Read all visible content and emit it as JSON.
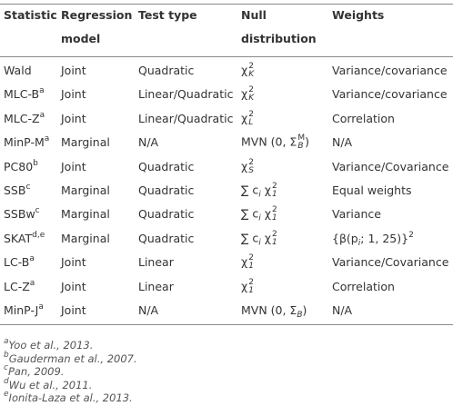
{
  "table": {
    "header": [
      "Statistic",
      "Regression model",
      "Test type",
      "Null distribution",
      "Weights"
    ],
    "rows": [
      [
        {
          "text": "Wald"
        },
        "Joint",
        "Quadratic",
        [
          {
            "text": "χ"
          },
          {
            "sup": "2",
            "sub": "K"
          }
        ],
        "Variance/covariance"
      ],
      [
        {
          "text": "MLC-B",
          "sup": "a"
        },
        "Joint",
        "Linear/Quadratic",
        [
          {
            "text": "χ"
          },
          {
            "sup": "2",
            "sub": "K"
          }
        ],
        "Variance/covariance"
      ],
      [
        {
          "text": "MLC-Z",
          "sup": "a"
        },
        "Joint",
        "Linear/Quadratic",
        [
          {
            "text": "χ"
          },
          {
            "sup": "2",
            "sub": "L"
          }
        ],
        "Correlation"
      ],
      [
        {
          "text": "MinP-M",
          "sup": "a"
        },
        "Marginal",
        "N/A",
        [
          {
            "text": "MVN (0, Σ"
          },
          {
            "sup": "M",
            "sub": "B"
          },
          {
            "text": ")"
          }
        ],
        "N/A"
      ],
      [
        {
          "text": "PC80",
          "sup": "b"
        },
        "Joint",
        "Quadratic",
        [
          {
            "text": "χ"
          },
          {
            "sup": "2",
            "sub": "S"
          }
        ],
        "Variance/Covariance"
      ],
      [
        {
          "text": "SSB",
          "sup": "c"
        },
        "Marginal",
        "Quadratic",
        [
          {
            "text": "∑ c"
          },
          {
            "sub": "i"
          },
          {
            "text": " χ"
          },
          {
            "sup": "2",
            "sub": "1"
          }
        ],
        "Equal weights"
      ],
      [
        {
          "text": "SSBw",
          "sup": "c"
        },
        "Marginal",
        "Quadratic",
        [
          {
            "text": "∑ c"
          },
          {
            "sub": "i"
          },
          {
            "text": " χ"
          },
          {
            "sup": "2",
            "sub": "1"
          }
        ],
        "Variance"
      ],
      [
        {
          "text": "SKAT",
          "sup": "d,e"
        },
        "Marginal",
        "Quadratic",
        [
          {
            "text": "∑ c"
          },
          {
            "sub": "i"
          },
          {
            "text": " χ"
          },
          {
            "sup": "2",
            "sub": "1"
          }
        ],
        [
          {
            "text": "{β(p"
          },
          {
            "sub": "i"
          },
          {
            "text": "; 1, 25)}"
          },
          {
            "sup": "2"
          }
        ]
      ],
      [
        {
          "text": "LC-B",
          "sup": "a"
        },
        "Joint",
        "Linear",
        [
          {
            "text": "χ"
          },
          {
            "sup": "2",
            "sub": "1"
          }
        ],
        "Variance/Covariance"
      ],
      [
        {
          "text": "LC-Z",
          "sup": "a"
        },
        "Joint",
        "Linear",
        [
          {
            "text": "χ"
          },
          {
            "sup": "2",
            "sub": "1"
          }
        ],
        "Correlation"
      ],
      [
        {
          "text": "MinP-J",
          "sup": "a"
        },
        "Joint",
        "N/A",
        [
          {
            "text": "MVN (0, Σ"
          },
          {
            "sub": "B"
          },
          {
            "text": ")"
          }
        ],
        "N/A"
      ]
    ]
  },
  "footnotes": [
    {
      "mark": "a",
      "text": "Yoo et al., 2013."
    },
    {
      "mark": "b",
      "text": "Gauderman et al., 2007."
    },
    {
      "mark": "c",
      "text": "Pan, 2009."
    },
    {
      "mark": "d",
      "text": "Wu et al., 2011."
    },
    {
      "mark": "e",
      "text": "Ionita-Laza et al., 2013."
    }
  ]
}
